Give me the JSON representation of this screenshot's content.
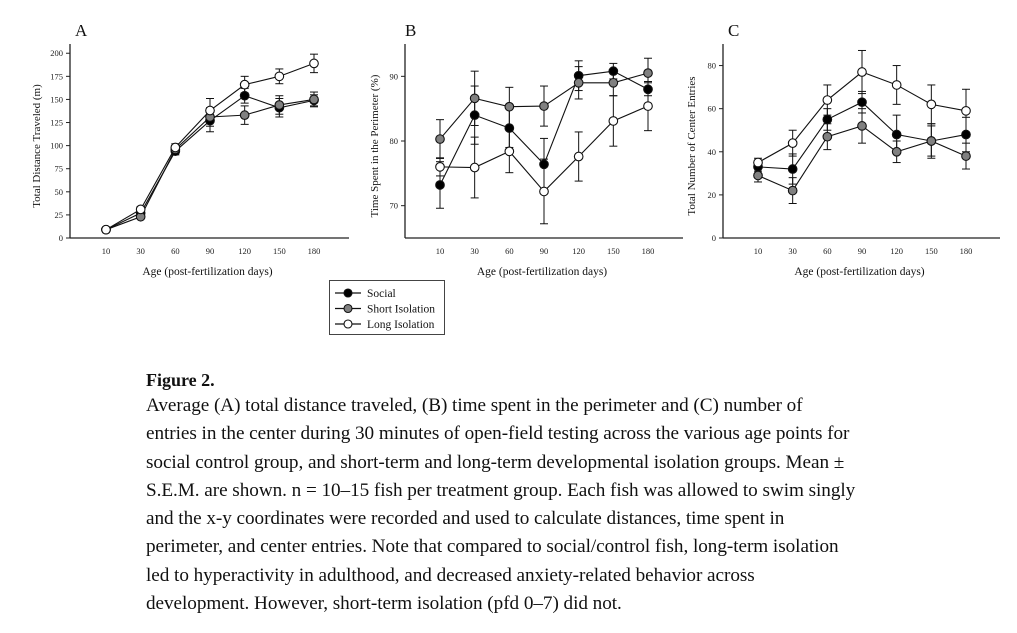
{
  "legend": {
    "items": [
      {
        "label": "Social",
        "fill": "#000000"
      },
      {
        "label": "Short Isolation",
        "fill": "#808080"
      },
      {
        "label": "Long Isolation",
        "fill": "#ffffff"
      }
    ]
  },
  "caption": {
    "title": "Figure 2.",
    "lines": [
      "Average (A) total distance traveled, (B) time spent in the perimeter and (C) number of",
      "entries in the center during 30 minutes of open-field testing across the various age points for",
      "social control group, and short-term and long-term developmental isolation groups. Mean ±",
      "S.E.M. are shown. n = 10–15 fish per treatment group. Each fish was allowed to swim singly",
      "and the x-y coordinates were recorded and used to calculate distances, time spent in",
      "perimeter, and center entries. Note that compared to social/control fish, long-term isolation",
      "led to hyperactivity in adulthood, and decreased anxiety-related behavior across",
      "development. However, short-term isolation (pfd 0–7) did not."
    ]
  },
  "chart_data": [
    {
      "panel": "A",
      "type": "line",
      "title": "",
      "xlabel": "Age (post-fertilization days)",
      "ylabel": "Total Distance Traveled (m)",
      "categories": [
        "10",
        "30",
        "60",
        "90",
        "120",
        "150",
        "180"
      ],
      "yticks": [
        0,
        25,
        50,
        75,
        100,
        125,
        150,
        175,
        200
      ],
      "ylim": [
        0,
        210
      ],
      "series": [
        {
          "name": "Social",
          "values": [
            9,
            27,
            94,
            127,
            154,
            141,
            149
          ],
          "sem": [
            1,
            3,
            4,
            12,
            8,
            10,
            6
          ]
        },
        {
          "name": "Short Isolation",
          "values": [
            9,
            23,
            96,
            131,
            133,
            144,
            150
          ],
          "sem": [
            1,
            2,
            4,
            10,
            10,
            10,
            8
          ]
        },
        {
          "name": "Long Isolation",
          "values": [
            9,
            31,
            98,
            138,
            166,
            175,
            189
          ],
          "sem": [
            1,
            3,
            4,
            13,
            9,
            8,
            10
          ]
        }
      ]
    },
    {
      "panel": "B",
      "type": "line",
      "title": "",
      "xlabel": "Age (post-fertilization days)",
      "ylabel": "Time Spent in the Perimeter (%)",
      "categories": [
        "10",
        "30",
        "60",
        "90",
        "120",
        "150",
        "180"
      ],
      "yticks": [
        70,
        80,
        90
      ],
      "ylim": [
        65,
        95
      ],
      "series": [
        {
          "name": "Social",
          "values": [
            73.2,
            84.0,
            82.0,
            76.4,
            90.1,
            90.8,
            88.0
          ],
          "sem": [
            3.6,
            4.5,
            3.0,
            4.0,
            2.3,
            1.2,
            1.0
          ]
        },
        {
          "name": "Short Isolation",
          "values": [
            80.3,
            86.6,
            85.3,
            85.4,
            89.0,
            89.0,
            90.5
          ],
          "sem": [
            3.0,
            4.2,
            3.0,
            3.1,
            2.5,
            2.0,
            2.3
          ]
        },
        {
          "name": "Long Isolation",
          "values": [
            76.0,
            75.9,
            78.4,
            72.2,
            77.6,
            83.1,
            85.4
          ],
          "sem": [
            1.4,
            4.7,
            3.3,
            5.0,
            3.8,
            3.9,
            3.8
          ]
        }
      ]
    },
    {
      "panel": "C",
      "type": "line",
      "title": "",
      "xlabel": "Age (post-fertilization days)",
      "ylabel": "Total Number of Center Entries",
      "categories": [
        "10",
        "30",
        "60",
        "90",
        "120",
        "150",
        "180"
      ],
      "yticks": [
        0,
        20,
        40,
        60,
        80
      ],
      "ylim": [
        0,
        90
      ],
      "series": [
        {
          "name": "Social",
          "values": [
            33,
            32,
            55,
            63,
            48,
            45,
            48
          ],
          "sem": [
            2,
            7,
            5,
            5,
            9,
            7,
            8
          ]
        },
        {
          "name": "Short Isolation",
          "values": [
            29,
            22,
            47,
            52,
            40,
            45,
            38
          ],
          "sem": [
            3,
            6,
            6,
            8,
            5,
            8,
            6
          ]
        },
        {
          "name": "Long Isolation",
          "values": [
            35,
            44,
            64,
            77,
            71,
            62,
            59
          ],
          "sem": [
            2,
            6,
            7,
            10,
            9,
            9,
            10
          ]
        }
      ]
    }
  ]
}
